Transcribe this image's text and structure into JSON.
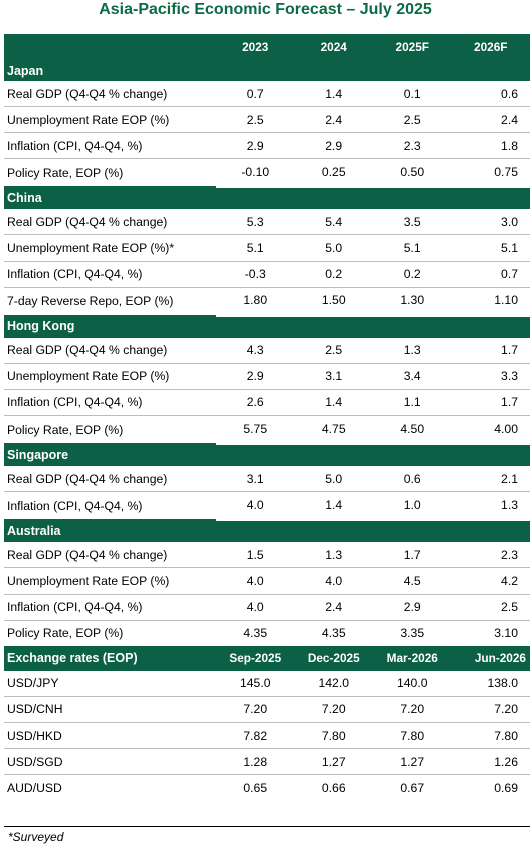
{
  "title": "Asia-Pacific Economic Forecast – July 2025",
  "header": {
    "label": "",
    "years": [
      "2023",
      "2024",
      "2025F",
      "2026F"
    ]
  },
  "sections": [
    {
      "name": "Japan",
      "rows": [
        {
          "label": "Real GDP (Q4-Q4 % change)",
          "values": [
            "0.7",
            "1.4",
            "0.1",
            "0.6"
          ]
        },
        {
          "label": "Unemployment Rate EOP (%)",
          "values": [
            "2.5",
            "2.4",
            "2.5",
            "2.4"
          ]
        },
        {
          "label": "Inflation (CPI, Q4-Q4, %)",
          "values": [
            "2.9",
            "2.9",
            "2.3",
            "1.8"
          ]
        },
        {
          "label": "Policy Rate, EOP (%)",
          "values": [
            "-0.10",
            "0.25",
            "0.50",
            "0.75"
          ]
        }
      ]
    },
    {
      "name": "China",
      "rows": [
        {
          "label": "Real GDP (Q4-Q4 % change)",
          "values": [
            "5.3",
            "5.4",
            "3.5",
            "3.0"
          ]
        },
        {
          "label": "Unemployment Rate EOP (%)*",
          "values": [
            "5.1",
            "5.0",
            "5.1",
            "5.1"
          ]
        },
        {
          "label": "Inflation (CPI, Q4-Q4, %)",
          "values": [
            "-0.3",
            "0.2",
            "0.2",
            "0.7"
          ]
        },
        {
          "label": "7-day Reverse Repo, EOP (%)",
          "values": [
            "1.80",
            "1.50",
            "1.30",
            "1.10"
          ]
        }
      ]
    },
    {
      "name": "Hong Kong",
      "rows": [
        {
          "label": "Real GDP (Q4-Q4 % change)",
          "values": [
            "4.3",
            "2.5",
            "1.3",
            "1.7"
          ]
        },
        {
          "label": "Unemployment Rate EOP (%)",
          "values": [
            "2.9",
            "3.1",
            "3.4",
            "3.3"
          ]
        },
        {
          "label": "Inflation (CPI, Q4-Q4, %)",
          "values": [
            "2.6",
            "1.4",
            "1.1",
            "1.7"
          ]
        },
        {
          "label": "Policy Rate, EOP (%)",
          "values": [
            "5.75",
            "4.75",
            "4.50",
            "4.00"
          ]
        }
      ]
    },
    {
      "name": "Singapore",
      "rows": [
        {
          "label": "Real GDP (Q4-Q4 % change)",
          "values": [
            "3.1",
            "5.0",
            "0.6",
            "2.1"
          ]
        },
        {
          "label": "Inflation (CPI, Q4-Q4, %)",
          "values": [
            "4.0",
            "1.4",
            "1.0",
            "1.3"
          ]
        }
      ]
    },
    {
      "name": "Australia",
      "rows": [
        {
          "label": "Real GDP (Q4-Q4 % change)",
          "values": [
            "1.5",
            "1.3",
            "1.7",
            "2.3"
          ]
        },
        {
          "label": "Unemployment Rate EOP (%)",
          "values": [
            "4.0",
            "4.0",
            "4.5",
            "4.2"
          ]
        },
        {
          "label": "Inflation (CPI, Q4-Q4, %)",
          "values": [
            "4.0",
            "2.4",
            "2.9",
            "2.5"
          ]
        },
        {
          "label": "Policy Rate, EOP (%)",
          "values": [
            "4.35",
            "4.35",
            "3.35",
            "3.10"
          ]
        }
      ]
    }
  ],
  "fx": {
    "label": "Exchange rates (EOP)",
    "periods": [
      "Sep-2025",
      "Dec-2025",
      "Mar-2026",
      "Jun-2026"
    ],
    "rows": [
      {
        "label": "USD/JPY",
        "values": [
          "145.0",
          "142.0",
          "140.0",
          "138.0"
        ]
      },
      {
        "label": "USD/CNH",
        "values": [
          "7.20",
          "7.20",
          "7.20",
          "7.20"
        ]
      },
      {
        "label": "USD/HKD",
        "values": [
          "7.82",
          "7.80",
          "7.80",
          "7.80"
        ]
      },
      {
        "label": "USD/SGD",
        "values": [
          "1.28",
          "1.27",
          "1.27",
          "1.26"
        ]
      },
      {
        "label": "AUD/USD",
        "values": [
          "0.65",
          "0.66",
          "0.67",
          "0.69"
        ]
      }
    ]
  },
  "footnote": "*Surveyed",
  "colors": {
    "accent": "#0b6045",
    "title": "#0b6b45"
  }
}
